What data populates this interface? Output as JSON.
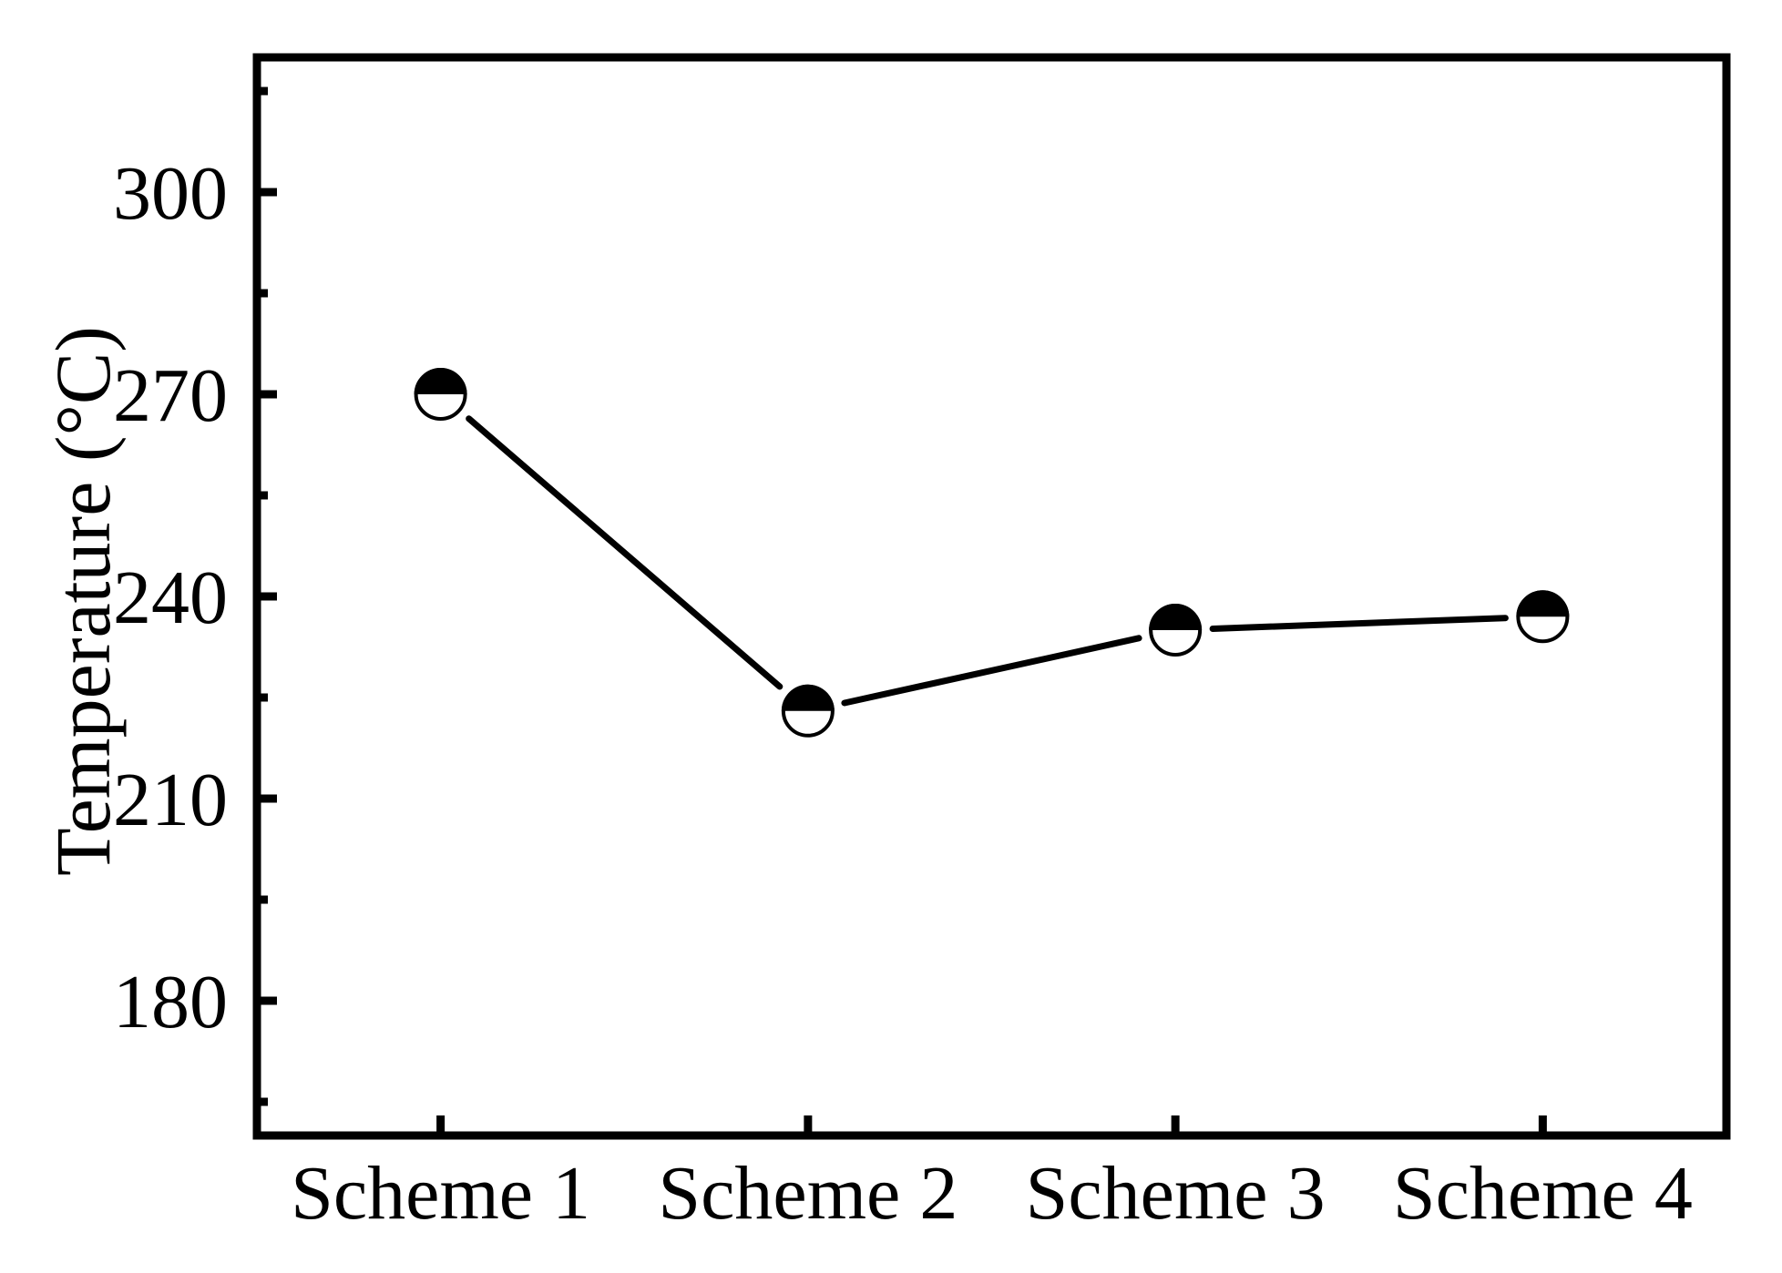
{
  "figure": {
    "background": "#ffffff",
    "ink_color": "#000000"
  },
  "chart_data": {
    "type": "line",
    "title": "",
    "xlabel": "",
    "ylabel": "Temperature (°C)",
    "categories": [
      "Scheme 1",
      "Scheme 2",
      "Scheme 3",
      "Scheme 4"
    ],
    "series": [
      {
        "name": "Temperature",
        "values": [
          270,
          223,
          235,
          237
        ]
      }
    ],
    "ylim": [
      160,
      320
    ],
    "yticks": [
      180,
      210,
      240,
      270,
      300
    ],
    "ytick_labels": [
      "180",
      "210",
      "240",
      "270",
      "300"
    ],
    "y_minor_step": 15,
    "grid": false,
    "legend": "none",
    "frame": "full-box",
    "tick_direction": "in",
    "marker": "circle-half-filled-top",
    "line_color": "#000000",
    "marker_top_fill": "#000000",
    "marker_bottom_fill": "#ffffff"
  }
}
